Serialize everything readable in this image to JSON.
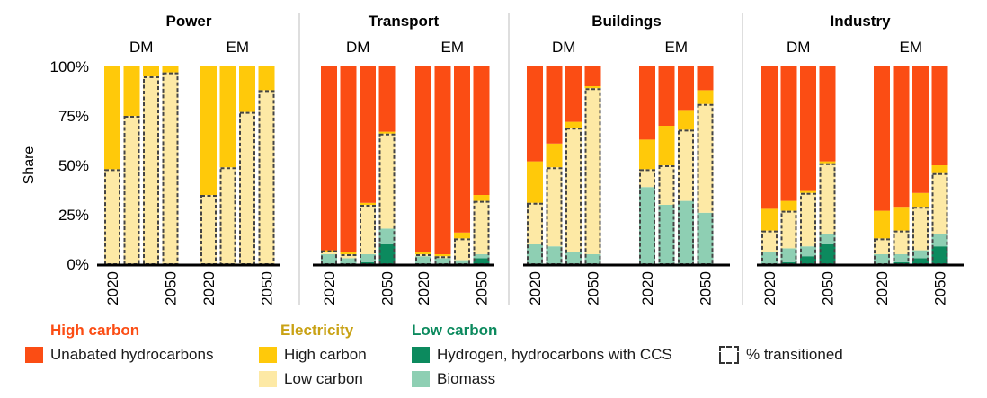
{
  "chart_data": {
    "type": "bar",
    "stacked": true,
    "ylabel": "Share",
    "y_ticks": [
      "0%",
      "25%",
      "50%",
      "75%",
      "100%"
    ],
    "ylim": [
      0,
      100
    ],
    "legend_placement": "bottom",
    "colors": {
      "unabated": "#fb4d14",
      "elec_high": "#ffc90a",
      "elec_low": "#fde9a5",
      "hydrogen_ccs": "#0c8a5e",
      "biomass": "#8ecfb3",
      "transitioned_outline": "#444444",
      "axis": "#000000",
      "divider": "#bdbdbd"
    },
    "legend": {
      "high_carbon": {
        "title": "High carbon",
        "title_color": "#fb4d14",
        "items": [
          {
            "key": "unabated",
            "label": "Unabated hydrocarbons"
          }
        ]
      },
      "electricity": {
        "title": "Electricity",
        "title_color": "#c9a215",
        "items": [
          {
            "key": "elec_high",
            "label": "High carbon"
          },
          {
            "key": "elec_low",
            "label": "Low carbon"
          }
        ]
      },
      "low_carbon": {
        "title": "Low carbon",
        "title_color": "#0c8a5e",
        "items": [
          {
            "key": "hydrogen_ccs",
            "label": "Hydrogen, hydrocarbons with CCS"
          },
          {
            "key": "biomass",
            "label": "Biomass"
          }
        ]
      },
      "transitioned": {
        "label": "% transitioned"
      }
    },
    "sector_order": [
      "hydrogen_ccs",
      "biomass",
      "elec_low",
      "elec_high",
      "unabated"
    ],
    "panels": [
      {
        "title": "Power",
        "groups": [
          {
            "label": "DM",
            "first_year": "2020",
            "last_year": "2050",
            "bars": [
              {
                "elec_low": 48,
                "elec_high": 52,
                "transitioned": 48
              },
              {
                "elec_low": 75,
                "elec_high": 25,
                "transitioned": 75
              },
              {
                "elec_low": 95,
                "elec_high": 5,
                "transitioned": 95
              },
              {
                "elec_low": 97,
                "elec_high": 3,
                "transitioned": 97
              }
            ]
          },
          {
            "label": "EM",
            "first_year": "2020",
            "last_year": "2050",
            "bars": [
              {
                "elec_low": 35,
                "elec_high": 65,
                "transitioned": 35
              },
              {
                "elec_low": 49,
                "elec_high": 51,
                "transitioned": 49
              },
              {
                "elec_low": 77,
                "elec_high": 23,
                "transitioned": 77
              },
              {
                "elec_low": 88,
                "elec_high": 12,
                "transitioned": 88
              }
            ]
          }
        ]
      },
      {
        "title": "Transport",
        "groups": [
          {
            "label": "DM",
            "first_year": "2020",
            "last_year": "2050",
            "bars": [
              {
                "hydrogen_ccs": 0,
                "biomass": 5,
                "elec_low": 1,
                "elec_high": 1,
                "unabated": 93,
                "transitioned": 7
              },
              {
                "hydrogen_ccs": 0,
                "biomass": 3,
                "elec_low": 2,
                "elec_high": 1,
                "unabated": 94,
                "transitioned": 5
              },
              {
                "hydrogen_ccs": 1,
                "biomass": 4,
                "elec_low": 25,
                "elec_high": 1,
                "unabated": 69,
                "transitioned": 30
              },
              {
                "hydrogen_ccs": 10,
                "biomass": 8,
                "elec_low": 48,
                "elec_high": 1,
                "unabated": 33,
                "transitioned": 66
              }
            ]
          },
          {
            "label": "EM",
            "first_year": "2020",
            "last_year": "2050",
            "bars": [
              {
                "hydrogen_ccs": 0,
                "biomass": 4,
                "elec_low": 1,
                "elec_high": 1,
                "unabated": 94,
                "transitioned": 5
              },
              {
                "hydrogen_ccs": 0,
                "biomass": 3,
                "elec_low": 1,
                "elec_high": 1,
                "unabated": 95,
                "transitioned": 4
              },
              {
                "hydrogen_ccs": 0,
                "biomass": 2,
                "elec_low": 11,
                "elec_high": 3,
                "unabated": 84,
                "transitioned": 13
              },
              {
                "hydrogen_ccs": 3,
                "biomass": 2,
                "elec_low": 27,
                "elec_high": 3,
                "unabated": 65,
                "transitioned": 32
              }
            ]
          }
        ]
      },
      {
        "title": "Buildings",
        "groups": [
          {
            "label": "DM",
            "first_year": "2020",
            "last_year": "2050",
            "bars": [
              {
                "hydrogen_ccs": 0,
                "biomass": 10,
                "elec_low": 21,
                "elec_high": 21,
                "unabated": 48,
                "transitioned": 31
              },
              {
                "hydrogen_ccs": 0,
                "biomass": 9,
                "elec_low": 40,
                "elec_high": 12,
                "unabated": 39,
                "transitioned": 49
              },
              {
                "hydrogen_ccs": 0,
                "biomass": 6,
                "elec_low": 63,
                "elec_high": 3,
                "unabated": 28,
                "transitioned": 69
              },
              {
                "hydrogen_ccs": 0,
                "biomass": 5,
                "elec_low": 84,
                "elec_high": 1,
                "unabated": 10,
                "transitioned": 89
              }
            ]
          },
          {
            "label": "EM",
            "first_year": "2020",
            "last_year": "2050",
            "bars": [
              {
                "hydrogen_ccs": 0,
                "biomass": 39,
                "elec_low": 9,
                "elec_high": 15,
                "unabated": 37,
                "transitioned": 48
              },
              {
                "hydrogen_ccs": 0,
                "biomass": 30,
                "elec_low": 20,
                "elec_high": 20,
                "unabated": 30,
                "transitioned": 50
              },
              {
                "hydrogen_ccs": 0,
                "biomass": 32,
                "elec_low": 36,
                "elec_high": 10,
                "unabated": 22,
                "transitioned": 68
              },
              {
                "hydrogen_ccs": 0,
                "biomass": 26,
                "elec_low": 55,
                "elec_high": 7,
                "unabated": 12,
                "transitioned": 81
              }
            ]
          }
        ]
      },
      {
        "title": "Industry",
        "groups": [
          {
            "label": "DM",
            "first_year": "2020",
            "last_year": "2050",
            "bars": [
              {
                "hydrogen_ccs": 0,
                "biomass": 6,
                "elec_low": 11,
                "elec_high": 11,
                "unabated": 72,
                "transitioned": 17
              },
              {
                "hydrogen_ccs": 1,
                "biomass": 7,
                "elec_low": 19,
                "elec_high": 5,
                "unabated": 68,
                "transitioned": 27
              },
              {
                "hydrogen_ccs": 4,
                "biomass": 5,
                "elec_low": 27,
                "elec_high": 1,
                "unabated": 63,
                "transitioned": 36
              },
              {
                "hydrogen_ccs": 10,
                "biomass": 5,
                "elec_low": 36,
                "elec_high": 1,
                "unabated": 48,
                "transitioned": 51
              }
            ]
          },
          {
            "label": "EM",
            "first_year": "2020",
            "last_year": "2050",
            "bars": [
              {
                "hydrogen_ccs": 0,
                "biomass": 5,
                "elec_low": 8,
                "elec_high": 14,
                "unabated": 73,
                "transitioned": 13
              },
              {
                "hydrogen_ccs": 1,
                "biomass": 4,
                "elec_low": 12,
                "elec_high": 12,
                "unabated": 71,
                "transitioned": 17
              },
              {
                "hydrogen_ccs": 3,
                "biomass": 4,
                "elec_low": 22,
                "elec_high": 7,
                "unabated": 64,
                "transitioned": 29
              },
              {
                "hydrogen_ccs": 9,
                "biomass": 6,
                "elec_low": 31,
                "elec_high": 4,
                "unabated": 50,
                "transitioned": 46
              }
            ]
          }
        ]
      }
    ]
  }
}
